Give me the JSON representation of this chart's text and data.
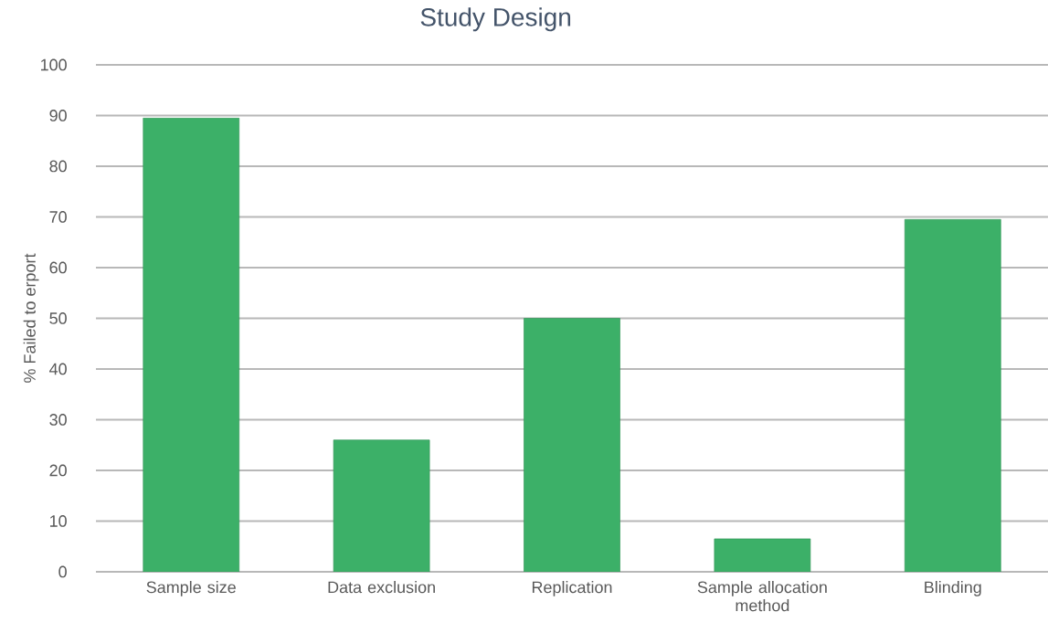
{
  "chart_data": {
    "type": "bar",
    "title": "Study Design",
    "ylabel": "% Failed to erport",
    "categories": [
      "Sample size",
      "Data exclusion",
      "Replication",
      "Sample allocation method",
      "Blinding"
    ],
    "values": [
      89.5,
      26,
      50,
      6.5,
      69.5
    ],
    "color": "#3cb068",
    "ylim": [
      0,
      100
    ],
    "yticks": [
      0,
      10,
      20,
      30,
      40,
      50,
      60,
      70,
      80,
      90,
      100
    ],
    "grid": "y"
  }
}
